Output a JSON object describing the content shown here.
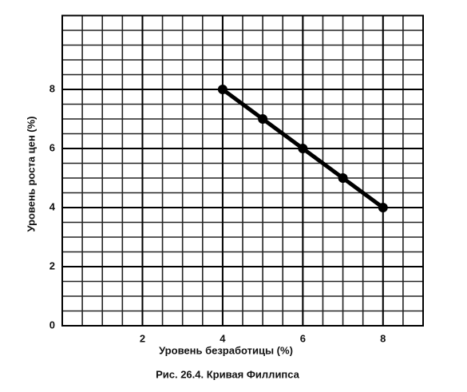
{
  "chart_data": {
    "type": "line",
    "title": "Рис. 26.4. Кривая Филлипса",
    "x_label": "Уровень безработицы (%)",
    "y_label": "Уровень роста цен (%)",
    "x": [
      4,
      5,
      6,
      7,
      8
    ],
    "series": [
      {
        "name": "Кривая Филлипса",
        "color": "#000000",
        "values": [
          8,
          7,
          6,
          5,
          4
        ]
      }
    ],
    "xlim": [
      0,
      9
    ],
    "ylim": [
      0,
      10.5
    ],
    "xticks": [
      2,
      4,
      6,
      8
    ],
    "yticks": [
      0,
      2,
      4,
      6,
      8
    ],
    "grid": true
  }
}
